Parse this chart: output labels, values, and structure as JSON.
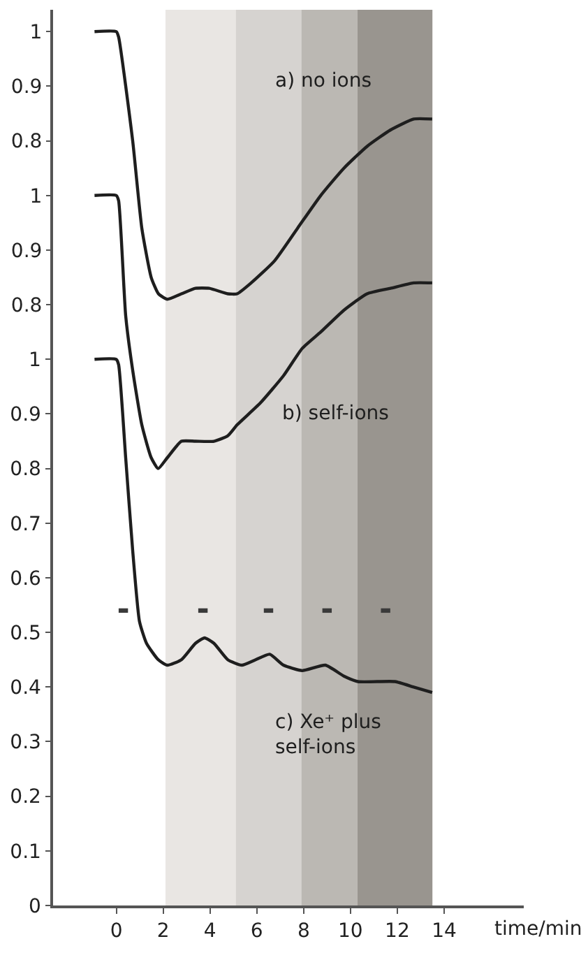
{
  "chart_data": {
    "type": "line",
    "xlabel": "time/min",
    "xlim": [
      -2.7,
      17.4
    ],
    "xticks": [
      0,
      2,
      4,
      6,
      8,
      10,
      12,
      14
    ],
    "ylim": [
      0,
      1.64
    ],
    "yticks": [
      0,
      0.1,
      0.2,
      0.3,
      0.4,
      0.5,
      0.6,
      0.7,
      0.8,
      0.9,
      1
    ],
    "y2lim": [
      -0.3,
      1.34
    ],
    "y2ticks": [
      0.8,
      0.9,
      1
    ],
    "y3lim": [
      -0.6,
      1.04
    ],
    "y3ticks": [
      0.8,
      0.9,
      1
    ],
    "series": [
      {
        "name": "a) no ions",
        "color": "#1e1e1e",
        "axis": "y3",
        "x": [
          -0.93,
          0,
          0.1,
          0.7,
          1.09,
          1.49,
          1.8,
          2.18,
          2.78,
          3.38,
          3.97,
          4.76,
          5.16,
          5.76,
          6.75,
          7.74,
          8.73,
          9.72,
          10.71,
          11.71,
          12.7,
          13.49
        ],
        "values": [
          1.0,
          1.0,
          0.99,
          0.8,
          0.64,
          0.55,
          0.52,
          0.51,
          0.52,
          0.53,
          0.53,
          0.52,
          0.52,
          0.54,
          0.58,
          0.64,
          0.7,
          0.75,
          0.79,
          0.82,
          0.84,
          0.84
        ]
      },
      {
        "name": "b) self-ions",
        "color": "#1e1e1e",
        "axis": "y2",
        "x": [
          -0.93,
          0,
          0.1,
          0.4,
          0.7,
          1.09,
          1.49,
          1.79,
          2.18,
          2.78,
          3.38,
          4.17,
          4.76,
          5.16,
          6.15,
          7.14,
          7.94,
          8.73,
          9.72,
          10.71,
          11.71,
          12.7,
          13.49
        ],
        "values": [
          1.0,
          1.0,
          0.99,
          0.78,
          0.68,
          0.58,
          0.52,
          0.5,
          0.52,
          0.55,
          0.55,
          0.55,
          0.56,
          0.58,
          0.62,
          0.67,
          0.72,
          0.75,
          0.79,
          0.82,
          0.83,
          0.84,
          0.84
        ]
      },
      {
        "name": "c) Xe⁺ plus self-ions",
        "color": "#1e1e1e",
        "x": [
          -0.93,
          0,
          0.1,
          0.4,
          0.7,
          0.99,
          1.29,
          1.79,
          2.18,
          2.78,
          3.38,
          3.77,
          4.17,
          4.76,
          5.36,
          5.95,
          6.55,
          7.14,
          7.94,
          8.93,
          9.72,
          10.32,
          11.9,
          12.7,
          13.49
        ],
        "values": [
          1.0,
          1.0,
          0.99,
          0.82,
          0.65,
          0.52,
          0.48,
          0.45,
          0.44,
          0.45,
          0.48,
          0.49,
          0.48,
          0.45,
          0.44,
          0.45,
          0.46,
          0.44,
          0.43,
          0.44,
          0.42,
          0.41,
          0.41,
          0.4,
          0.39
        ]
      },
      {
        "color": "#3a3a3a",
        "x": [
          0.1,
          0.5,
          2.1,
          3.5,
          3.9,
          5.2,
          6.3,
          6.7,
          7.9,
          8.8,
          9.2,
          10.4,
          11.3,
          11.7
        ],
        "values": [
          0.54,
          0.54,
          null,
          0.54,
          0.54,
          null,
          0.54,
          0.54,
          null,
          0.54,
          0.54,
          null,
          0.54,
          0.54
        ]
      }
    ],
    "bands": [
      {
        "axis": "x",
        "from": 2.1,
        "to": 5.1,
        "color": "#e9e6e3"
      },
      {
        "axis": "x",
        "from": 5.1,
        "to": 7.9,
        "color": "#d6d3d0"
      },
      {
        "axis": "x",
        "from": 7.9,
        "to": 10.3,
        "color": "#bbb8b3"
      },
      {
        "axis": "x",
        "from": 10.3,
        "to": 13.5,
        "color": "#99958f"
      }
    ],
    "grid": false,
    "legend": false,
    "marker": "none",
    "line_style": "solid"
  }
}
